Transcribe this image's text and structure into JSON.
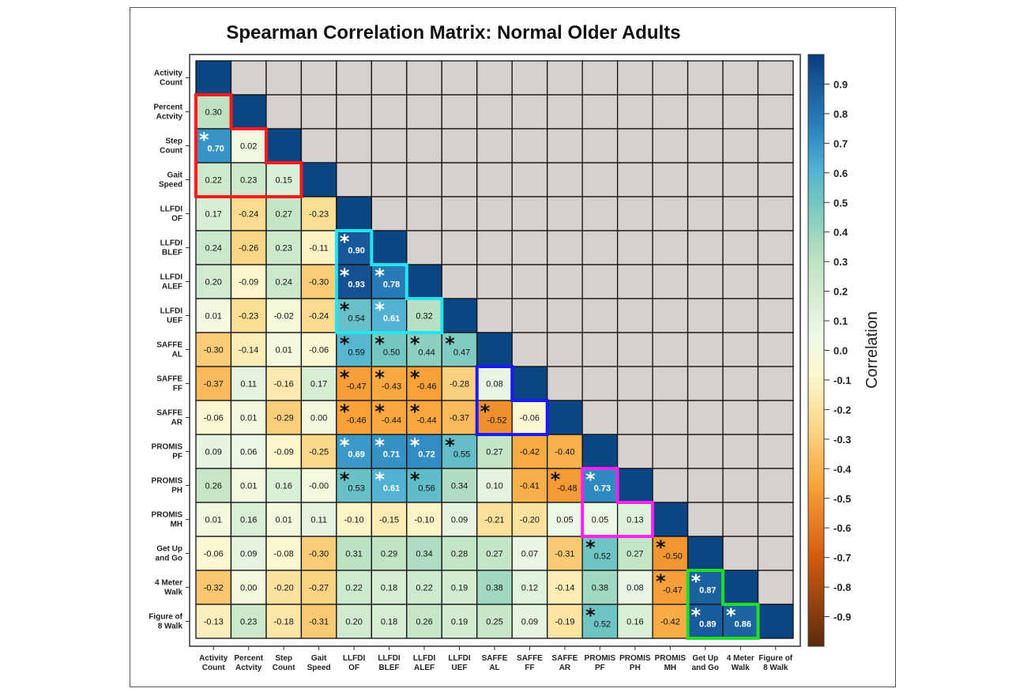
{
  "chart_data": {
    "type": "heatmap",
    "title": "Spearman Correlation Matrix: Normal Older Adults",
    "labels": [
      [
        "Activity",
        "Count"
      ],
      [
        "Percent",
        "Actvity"
      ],
      [
        "Step",
        "Count"
      ],
      [
        "Gait",
        "Speed"
      ],
      [
        "LLFDI",
        "OF"
      ],
      [
        "LLFDI",
        "BLEF"
      ],
      [
        "LLFDI",
        "ALEF"
      ],
      [
        "LLFDI",
        "UEF"
      ],
      [
        "SAFFE",
        "AL"
      ],
      [
        "SAFFE",
        "FF"
      ],
      [
        "SAFFE",
        "AR"
      ],
      [
        "PROMIS",
        "PF"
      ],
      [
        "PROMIS",
        "PH"
      ],
      [
        "PROMIS",
        "MH"
      ],
      [
        "Get Up",
        "and Go"
      ],
      [
        "4 Meter",
        "Walk"
      ],
      [
        "Figure of",
        "8 Walk"
      ]
    ],
    "lower_triangle_values": [
      [],
      [
        "0.30"
      ],
      [
        "0.70",
        "0.02"
      ],
      [
        "0.22",
        "0.23",
        "0.15"
      ],
      [
        "0.17",
        "-0.24",
        "0.27",
        "-0.23"
      ],
      [
        "0.24",
        "-0.26",
        "0.23",
        "-0.11",
        "0.90"
      ],
      [
        "0.20",
        "-0.09",
        "0.24",
        "-0.30",
        "0.93",
        "0.78"
      ],
      [
        "0.01",
        "-0.23",
        "-0.02",
        "-0.24",
        "0.54",
        "0.61",
        "0.32"
      ],
      [
        "-0.30",
        "-0.14",
        "0.01",
        "-0.06",
        "0.59",
        "0.50",
        "0.44",
        "0.47"
      ],
      [
        "-0.37",
        "0.11",
        "-0.16",
        "0.17",
        "-0.47",
        "-0.43",
        "-0.46",
        "-0.28",
        "0.08"
      ],
      [
        "-0.06",
        "0.01",
        "-0.29",
        "0.00",
        "-0.46",
        "-0.44",
        "-0.44",
        "-0.37",
        "-0.52",
        "-0.06"
      ],
      [
        "0.09",
        "0.06",
        "-0.09",
        "-0.25",
        "0.69",
        "0.71",
        "0.72",
        "0.55",
        "0.27",
        "-0.42",
        "-0.40"
      ],
      [
        "0.26",
        "0.01",
        "0.16",
        "-0.00",
        "0.53",
        "0.61",
        "0.56",
        "0.34",
        "0.10",
        "-0.41",
        "-0.48",
        "0.73"
      ],
      [
        "0.01",
        "0.16",
        "0.01",
        "0.11",
        "-0.10",
        "-0.15",
        "-0.10",
        "0.09",
        "-0.21",
        "-0.20",
        "0.05",
        "0.05",
        "0.13"
      ],
      [
        "-0.06",
        "0.09",
        "-0.08",
        "-0.30",
        "0.31",
        "0.29",
        "0.34",
        "0.28",
        "0.27",
        "0.07",
        "-0.31",
        "0.52",
        "0.27",
        "-0.50"
      ],
      [
        "-0.32",
        "0.00",
        "-0.20",
        "-0.27",
        "0.22",
        "0.18",
        "0.22",
        "0.19",
        "0.38",
        "0.12",
        "-0.14",
        "0.38",
        "0.08",
        "-0.47",
        "0.87"
      ],
      [
        "-0.13",
        "0.23",
        "-0.18",
        "-0.31",
        "0.20",
        "0.18",
        "0.26",
        "0.19",
        "0.25",
        "0.09",
        "-0.19",
        "0.52",
        "0.16",
        "-0.42",
        "0.89",
        "0.86"
      ]
    ],
    "significant": [
      [
        2,
        0
      ],
      [
        5,
        4
      ],
      [
        6,
        4
      ],
      [
        6,
        5
      ],
      [
        7,
        4
      ],
      [
        7,
        5
      ],
      [
        8,
        4
      ],
      [
        8,
        5
      ],
      [
        8,
        6
      ],
      [
        8,
        7
      ],
      [
        9,
        4
      ],
      [
        9,
        5
      ],
      [
        9,
        6
      ],
      [
        10,
        4
      ],
      [
        10,
        5
      ],
      [
        10,
        6
      ],
      [
        10,
        8
      ],
      [
        11,
        4
      ],
      [
        11,
        5
      ],
      [
        11,
        6
      ],
      [
        11,
        7
      ],
      [
        12,
        4
      ],
      [
        12,
        5
      ],
      [
        12,
        6
      ],
      [
        12,
        10
      ],
      [
        12,
        11
      ],
      [
        14,
        11
      ],
      [
        14,
        13
      ],
      [
        15,
        13
      ],
      [
        15,
        14
      ],
      [
        16,
        11
      ],
      [
        16,
        14
      ],
      [
        16,
        15
      ]
    ],
    "significance_marker": "*",
    "highlight_groups": [
      {
        "color": "#ff1a1a",
        "cells": [
          [
            1,
            0
          ],
          [
            2,
            0
          ],
          [
            2,
            1
          ],
          [
            3,
            0
          ],
          [
            3,
            1
          ],
          [
            3,
            2
          ]
        ]
      },
      {
        "color": "#22e5f0",
        "cells": [
          [
            5,
            4
          ],
          [
            6,
            4
          ],
          [
            6,
            5
          ],
          [
            7,
            4
          ],
          [
            7,
            5
          ],
          [
            7,
            6
          ]
        ]
      },
      {
        "color": "#1a1aff",
        "cells": [
          [
            9,
            8
          ],
          [
            10,
            8
          ],
          [
            10,
            9
          ]
        ]
      },
      {
        "color": "#ff22ee",
        "cells": [
          [
            12,
            11
          ],
          [
            13,
            11
          ],
          [
            13,
            12
          ]
        ]
      },
      {
        "color": "#22dd22",
        "cells": [
          [
            15,
            14
          ],
          [
            16,
            14
          ],
          [
            16,
            15
          ]
        ]
      }
    ],
    "diagonal_color": "#0c4584",
    "upper_triangle_color": "#d6d1cf",
    "colorbar": {
      "label": "Correlation",
      "range": [
        -1,
        1
      ],
      "ticks": [
        "0.9",
        "0.8",
        "0.7",
        "0.6",
        "0.5",
        "0.4",
        "0.3",
        "0.2",
        "0.1",
        "0.0",
        "-0.1",
        "-0.2",
        "-0.3",
        "-0.4",
        "-0.5",
        "-0.6",
        "-0.7",
        "-0.8",
        "-0.9"
      ],
      "colormap_stops": [
        {
          "v": -1.0,
          "c": "#5c2a0c"
        },
        {
          "v": -0.7,
          "c": "#d35b0f"
        },
        {
          "v": -0.45,
          "c": "#f9a43a"
        },
        {
          "v": -0.25,
          "c": "#fbd98b"
        },
        {
          "v": -0.08,
          "c": "#fdf8cf"
        },
        {
          "v": 0.05,
          "c": "#eef8e6"
        },
        {
          "v": 0.3,
          "c": "#bfe3c2"
        },
        {
          "v": 0.5,
          "c": "#74c7c0"
        },
        {
          "v": 0.62,
          "c": "#4eb0d4"
        },
        {
          "v": 0.75,
          "c": "#2b83bf"
        },
        {
          "v": 1.0,
          "c": "#0a3d7e"
        }
      ]
    }
  }
}
